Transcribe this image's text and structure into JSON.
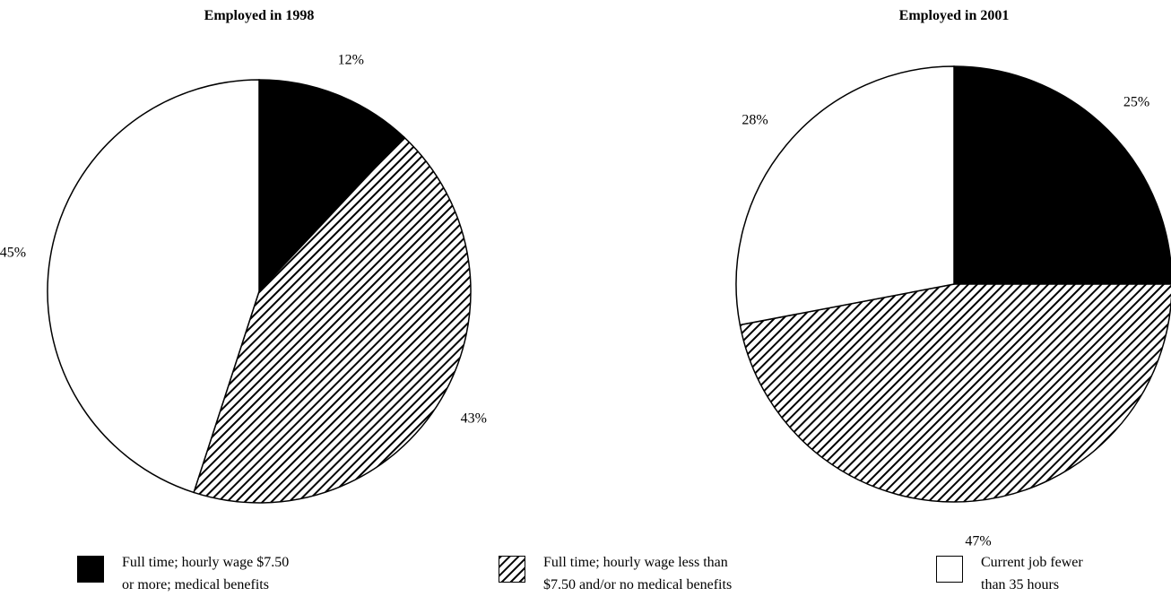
{
  "chart_data": [
    {
      "type": "pie",
      "title": "Employed in 1998",
      "slices": [
        {
          "key": "full_high",
          "value": 12,
          "label": "12%"
        },
        {
          "key": "full_low",
          "value": 43,
          "label": "43%"
        },
        {
          "key": "part_time",
          "value": 45,
          "label": "45%"
        }
      ]
    },
    {
      "type": "pie",
      "title": "Employed in 2001",
      "slices": [
        {
          "key": "full_high",
          "value": 25,
          "label": "25%"
        },
        {
          "key": "full_low",
          "value": 47,
          "label": "47%"
        },
        {
          "key": "part_time",
          "value": 28,
          "label": "28%"
        }
      ]
    }
  ],
  "legend": [
    {
      "key": "full_high",
      "fill": "solid-black",
      "line1": "Full time; hourly wage $7.50",
      "line2": "or more; medical benefits"
    },
    {
      "key": "full_low",
      "fill": "diagonal-hatch",
      "line1": "Full time; hourly wage less than",
      "line2": "$7.50 and/or no medical benefits"
    },
    {
      "key": "part_time",
      "fill": "white",
      "line1": "Current job fewer",
      "line2": "than 35 hours"
    }
  ],
  "colors": {
    "black": "#000000",
    "white": "#ffffff"
  }
}
